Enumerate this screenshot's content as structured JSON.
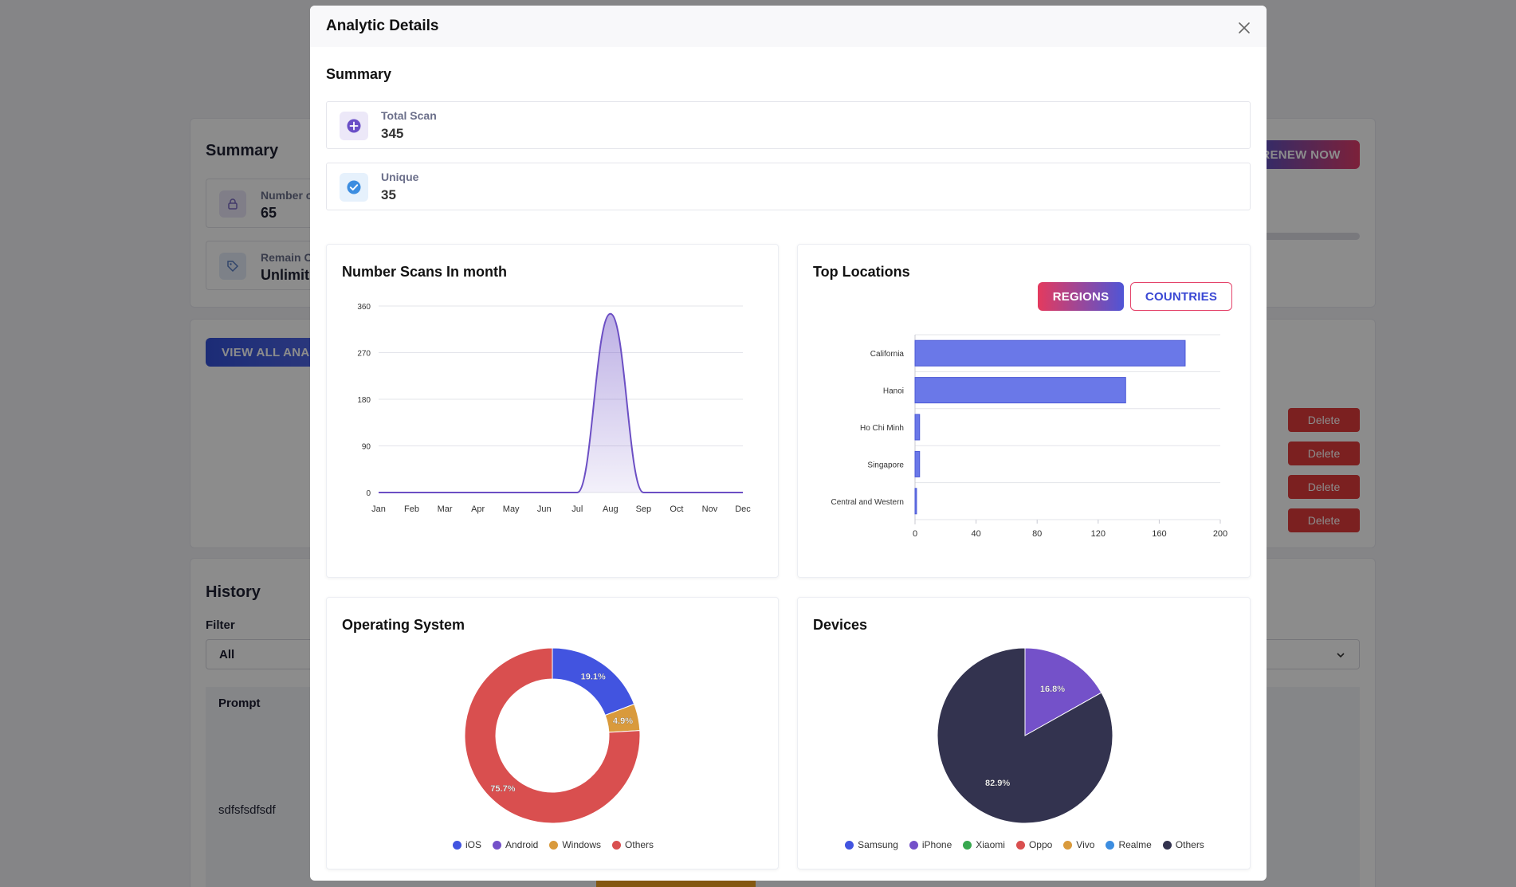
{
  "background": {
    "summary_title": "Summary",
    "stats": [
      {
        "label": "Number c",
        "value": "65",
        "icon": "lock-icon"
      },
      {
        "label": "Remain C",
        "value": "Unlimit",
        "icon": "tag-icon"
      }
    ],
    "renew_label": "RENEW NOW",
    "view_all_label": "VIEW ALL ANAL",
    "delete_label": "Delete",
    "history_title": "History",
    "filter_label": "Filter",
    "filter_value": "All",
    "prompt_header": "Prompt",
    "row_prompt": "sdfsfsdfsdf"
  },
  "modal": {
    "title": "Analytic Details",
    "close_icon": "close-icon",
    "summary_title": "Summary",
    "stats": [
      {
        "label": "Total Scan",
        "value": "345",
        "icon": "plus-circle-icon",
        "icon_bg": "#ece8f8",
        "icon_color": "#6a4fc7"
      },
      {
        "label": "Unique",
        "value": "35",
        "icon": "check-circle-icon",
        "icon_bg": "#e6f1fc",
        "icon_color": "#3c8de0"
      }
    ]
  },
  "charts": {
    "scans_title": "Number Scans In month",
    "locations_title": "Top Locations",
    "tab_regions": "REGIONS",
    "tab_countries": "COUNTRIES",
    "os_title": "Operating System",
    "devices_title": "Devices"
  },
  "chart_data": [
    {
      "id": "scans",
      "type": "area",
      "title": "Number Scans In month",
      "categories": [
        "Jan",
        "Feb",
        "Mar",
        "Apr",
        "May",
        "Jun",
        "Jul",
        "Aug",
        "Sep",
        "Oct",
        "Nov",
        "Dec"
      ],
      "series": [
        {
          "values": [
            0,
            0,
            0,
            0,
            0,
            0,
            0,
            345,
            0,
            0,
            0,
            0
          ]
        }
      ],
      "ylim": [
        0,
        360
      ],
      "yticks": [
        0,
        90,
        180,
        270,
        360
      ],
      "grid": true,
      "color": "#6c4fc4"
    },
    {
      "id": "locations",
      "type": "bar",
      "orientation": "horizontal",
      "title": "Top Locations",
      "categories": [
        "California",
        "Hanoi",
        "Ho Chi Minh",
        "Singapore",
        "Central and Western"
      ],
      "values": [
        177,
        138,
        3,
        3,
        1
      ],
      "xlim": [
        0,
        200
      ],
      "xticks": [
        0,
        40,
        80,
        120,
        160,
        200
      ],
      "color": "#6a78e8"
    },
    {
      "id": "os",
      "type": "pie",
      "variant": "donut",
      "title": "Operating System",
      "labels": [
        "iOS",
        "Android",
        "Windows",
        "Others"
      ],
      "values": [
        19.1,
        0,
        4.9,
        75.7
      ],
      "data_labels": [
        "19.1%",
        "",
        "4.9%",
        "75.7%"
      ],
      "colors": [
        "#4254e0",
        "#7451c9",
        "#d99a3c",
        "#d94f4f"
      ],
      "legend": "bottom"
    },
    {
      "id": "devices",
      "type": "pie",
      "title": "Devices",
      "labels": [
        "Samsung",
        "iPhone",
        "Xiaomi",
        "Oppo",
        "Vivo",
        "Realme",
        "Others"
      ],
      "values": [
        0,
        16.8,
        0,
        0,
        0,
        0,
        82.9
      ],
      "data_labels": [
        "",
        "16.8%",
        "",
        "",
        "",
        "",
        "82.9%"
      ],
      "colors": [
        "#4254e0",
        "#7451c9",
        "#38a84f",
        "#d94f4f",
        "#d99a3c",
        "#3c8de0",
        "#33334f"
      ],
      "legend": "bottom"
    }
  ]
}
